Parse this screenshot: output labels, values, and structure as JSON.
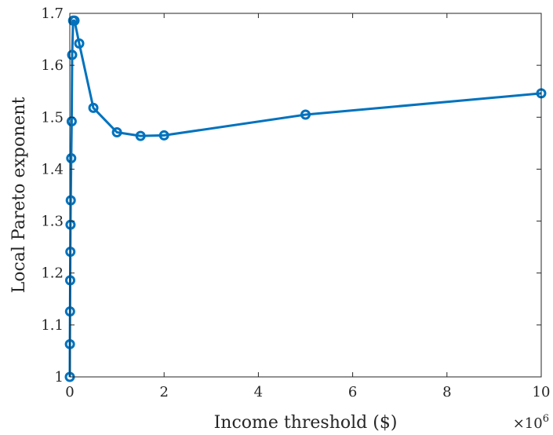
{
  "chart_data": {
    "type": "line",
    "xlabel": "Income threshold ($)",
    "ylabel": "Local Pareto exponent",
    "x_exponent_label": "×10",
    "x_exponent_power": "6",
    "xlim": [
      0,
      10000000
    ],
    "ylim": [
      1.0,
      1.7
    ],
    "xticks": [
      0,
      2000000,
      4000000,
      6000000,
      8000000,
      10000000
    ],
    "xtick_labels": [
      "0",
      "2",
      "4",
      "6",
      "8",
      "10"
    ],
    "yticks": [
      1.0,
      1.1,
      1.2,
      1.3,
      1.4,
      1.5,
      1.6,
      1.7
    ],
    "ytick_labels": [
      "1",
      "1.1",
      "1.2",
      "1.3",
      "1.4",
      "1.5",
      "1.6",
      "1.7"
    ],
    "grid": false,
    "color": "#0072BD",
    "series": [
      {
        "marker": "circle",
        "x": [
          0,
          2000,
          5000,
          8000,
          12000,
          15000,
          20000,
          30000,
          40000,
          50000,
          70000,
          100000,
          200000,
          500000,
          1000000,
          1500000,
          2000000,
          5000000,
          10000000
        ],
        "y": [
          1.0,
          1.063,
          1.126,
          1.186,
          1.241,
          1.293,
          1.34,
          1.421,
          1.492,
          1.62,
          1.686,
          1.686,
          1.642,
          1.518,
          1.471,
          1.464,
          1.465,
          1.505,
          1.546
        ]
      }
    ]
  }
}
